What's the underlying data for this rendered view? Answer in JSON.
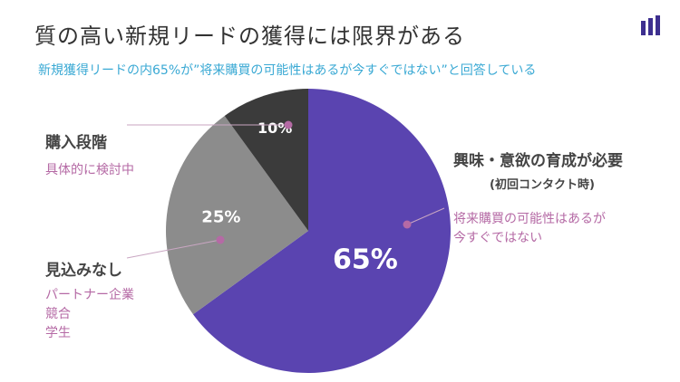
{
  "header": {
    "title": "質の高い新規リードの獲得には限界がある",
    "subtitle": "新規獲得リードの内65%が”将来購買の可能性はあるが今すぐではない”と回答している"
  },
  "chart_data": {
    "type": "pie",
    "slices": [
      {
        "name": "興味・意欲の育成が必要",
        "value": 65,
        "label": "65%",
        "color": "#5a44b0"
      },
      {
        "name": "見込みなし",
        "value": 25,
        "label": "25%",
        "color": "#8c8c8c"
      },
      {
        "name": "購入段階",
        "value": 10,
        "label": "10%",
        "color": "#3b3b3b"
      }
    ],
    "start": "12 o'clock, clockwise",
    "title": "",
    "legend": "callout labels"
  },
  "labels": {
    "purchase": {
      "title": "購入段階",
      "lines": [
        "具体的に検討中"
      ]
    },
    "nurture": {
      "title": "興味・意欲の育成が必要",
      "note": "(初回コンタクト時)",
      "lines": [
        "将来購買の可能性はあるが",
        "今すぐではない"
      ]
    },
    "noprospect": {
      "title": "見込みなし",
      "lines": [
        "パートナー企業",
        "競合",
        "学生"
      ]
    }
  },
  "colors": {
    "accent_dot": "#b56aa5",
    "leader_line": "#c9a6c2",
    "subtitle": "#3aa9d4"
  }
}
